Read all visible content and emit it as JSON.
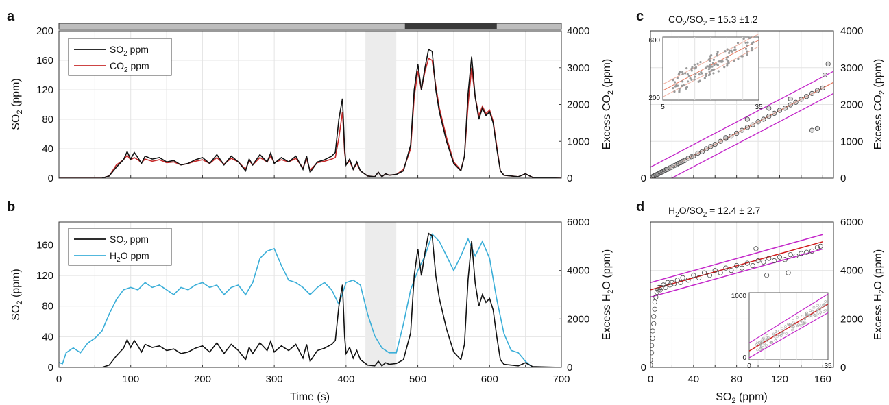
{
  "colors": {
    "so2": "#111111",
    "co2": "#c62a2a",
    "h2o": "#3aaed8",
    "fit": "#e8785e",
    "fit_h2o": "#d11a1a",
    "bounds": "#c326c9",
    "shade": "#ececec",
    "bar_light": "#bdbdbd",
    "bar_dark": "#3a3a3a",
    "grid": "#e4e4e4"
  },
  "chart_data": [
    {
      "panel": "a",
      "type": "line",
      "xlim": [
        0,
        700
      ],
      "ylim": [
        0,
        200
      ],
      "y2lim": [
        0,
        4000
      ],
      "yticks": [
        "0",
        "40",
        "80",
        "120",
        "160",
        "200"
      ],
      "y2ticks": [
        "0",
        "1000",
        "2000",
        "3000",
        "4000"
      ],
      "ylabel": "SO2 (ppm)",
      "y2label": "Excess CO2 (ppm)",
      "legend_position": "top-left",
      "shaded_interval": [
        427,
        470
      ],
      "top_bar": {
        "dark_interval": [
          482,
          610
        ]
      },
      "series": [
        {
          "name": "SO2 ppm",
          "axis": "left",
          "x": [
            0,
            60,
            70,
            80,
            90,
            95,
            100,
            105,
            110,
            115,
            120,
            130,
            140,
            150,
            160,
            170,
            180,
            190,
            200,
            210,
            220,
            230,
            240,
            250,
            260,
            265,
            270,
            280,
            290,
            295,
            300,
            310,
            320,
            330,
            340,
            345,
            350,
            360,
            370,
            380,
            385,
            390,
            395,
            398,
            400,
            405,
            410,
            415,
            420,
            430,
            440,
            445,
            450,
            455,
            460,
            470,
            480,
            490,
            495,
            500,
            505,
            510,
            515,
            520,
            525,
            530,
            540,
            550,
            560,
            565,
            570,
            575,
            580,
            585,
            590,
            595,
            600,
            605,
            610,
            615,
            620,
            630,
            640,
            650,
            660,
            700
          ],
          "y": [
            0,
            0,
            3,
            15,
            25,
            36,
            26,
            35,
            28,
            20,
            30,
            26,
            28,
            22,
            24,
            18,
            20,
            25,
            28,
            20,
            32,
            18,
            30,
            22,
            10,
            26,
            18,
            32,
            22,
            34,
            20,
            28,
            22,
            30,
            12,
            30,
            8,
            22,
            25,
            30,
            35,
            80,
            108,
            40,
            18,
            26,
            12,
            22,
            10,
            3,
            2,
            8,
            2,
            6,
            4,
            5,
            10,
            45,
            120,
            155,
            120,
            150,
            175,
            172,
            120,
            90,
            50,
            20,
            10,
            30,
            115,
            165,
            110,
            80,
            95,
            85,
            90,
            75,
            40,
            10,
            4,
            3,
            2,
            6,
            1,
            0
          ]
        },
        {
          "name": "CO2 ppm",
          "axis": "right",
          "x": [
            0,
            60,
            70,
            80,
            90,
            95,
            100,
            105,
            110,
            115,
            120,
            130,
            140,
            150,
            160,
            170,
            180,
            190,
            200,
            210,
            220,
            230,
            240,
            250,
            260,
            265,
            270,
            280,
            290,
            295,
            300,
            310,
            320,
            330,
            340,
            345,
            350,
            360,
            370,
            380,
            385,
            390,
            395,
            398,
            400,
            405,
            410,
            415,
            420,
            430,
            440,
            445,
            450,
            455,
            460,
            470,
            480,
            490,
            495,
            500,
            505,
            510,
            515,
            520,
            525,
            530,
            540,
            550,
            560,
            565,
            570,
            575,
            580,
            585,
            590,
            595,
            600,
            605,
            610,
            615,
            620,
            630,
            640,
            650,
            660,
            700
          ],
          "y": [
            0,
            0,
            60,
            360,
            500,
            620,
            500,
            560,
            500,
            420,
            520,
            460,
            500,
            420,
            440,
            360,
            400,
            460,
            500,
            400,
            560,
            380,
            540,
            440,
            240,
            480,
            360,
            560,
            440,
            600,
            420,
            500,
            440,
            540,
            280,
            520,
            220,
            420,
            460,
            520,
            560,
            1100,
            1800,
            700,
            380,
            460,
            240,
            400,
            200,
            60,
            40,
            160,
            40,
            120,
            80,
            100,
            240,
            800,
            2200,
            2900,
            2400,
            2900,
            3250,
            3200,
            2500,
            1900,
            1100,
            440,
            220,
            600,
            2000,
            3000,
            2200,
            1700,
            1950,
            1750,
            1850,
            1550,
            860,
            200,
            80,
            60,
            40,
            120,
            20,
            0
          ]
        }
      ]
    },
    {
      "panel": "b",
      "type": "line",
      "xlim": [
        0,
        700
      ],
      "ylim": [
        0,
        190
      ],
      "y2lim": [
        0,
        6000
      ],
      "xticks": [
        "0",
        "100",
        "200",
        "300",
        "400",
        "500",
        "600",
        "700"
      ],
      "yticks": [
        "0",
        "40",
        "80",
        "120",
        "160"
      ],
      "y2ticks": [
        "0",
        "2000",
        "4000",
        "6000"
      ],
      "xlabel": "Time (s)",
      "ylabel": "SO2 (ppm)",
      "y2label": "Excess H2O (ppm)",
      "legend_position": "top-left",
      "shaded_interval": [
        427,
        470
      ],
      "series": [
        {
          "name": "SO2 ppm",
          "axis": "left",
          "x": [
            0,
            60,
            70,
            80,
            90,
            95,
            100,
            105,
            110,
            115,
            120,
            130,
            140,
            150,
            160,
            170,
            180,
            190,
            200,
            210,
            220,
            230,
            240,
            250,
            260,
            265,
            270,
            280,
            290,
            295,
            300,
            310,
            320,
            330,
            340,
            345,
            350,
            360,
            370,
            380,
            385,
            390,
            395,
            398,
            400,
            405,
            410,
            415,
            420,
            430,
            440,
            445,
            450,
            455,
            460,
            470,
            480,
            490,
            495,
            500,
            505,
            510,
            515,
            520,
            525,
            530,
            540,
            550,
            560,
            565,
            570,
            575,
            580,
            585,
            590,
            595,
            600,
            605,
            610,
            615,
            620,
            630,
            640,
            650,
            660,
            700
          ],
          "y": [
            0,
            0,
            3,
            15,
            25,
            36,
            26,
            35,
            28,
            20,
            30,
            26,
            28,
            22,
            24,
            18,
            20,
            25,
            28,
            20,
            32,
            18,
            30,
            22,
            10,
            26,
            18,
            32,
            22,
            34,
            20,
            28,
            22,
            30,
            12,
            30,
            8,
            22,
            25,
            30,
            35,
            80,
            108,
            40,
            18,
            26,
            12,
            22,
            10,
            3,
            2,
            8,
            2,
            6,
            4,
            5,
            10,
            45,
            120,
            155,
            120,
            150,
            175,
            172,
            120,
            90,
            50,
            20,
            10,
            30,
            115,
            165,
            110,
            80,
            95,
            85,
            90,
            75,
            40,
            10,
            4,
            3,
            2,
            6,
            1,
            0
          ]
        },
        {
          "name": "H2O ppm",
          "axis": "right",
          "x": [
            0,
            5,
            10,
            20,
            30,
            40,
            50,
            60,
            70,
            80,
            90,
            100,
            110,
            120,
            130,
            140,
            150,
            160,
            170,
            180,
            190,
            200,
            210,
            220,
            230,
            240,
            250,
            260,
            270,
            280,
            290,
            300,
            310,
            320,
            330,
            340,
            350,
            360,
            370,
            380,
            390,
            400,
            410,
            420,
            430,
            440,
            450,
            460,
            470,
            480,
            490,
            500,
            510,
            520,
            530,
            540,
            550,
            560,
            570,
            580,
            590,
            600,
            610,
            620,
            630,
            640,
            650,
            660,
            700
          ],
          "y": [
            200,
            150,
            600,
            800,
            600,
            1000,
            1200,
            1500,
            2200,
            2800,
            3200,
            3300,
            3200,
            3500,
            3300,
            3400,
            3200,
            3000,
            3300,
            3200,
            3400,
            3500,
            3300,
            3400,
            3000,
            3300,
            3400,
            3000,
            3500,
            4500,
            4800,
            4900,
            4200,
            3600,
            3500,
            3300,
            3000,
            3300,
            3500,
            3200,
            2600,
            3500,
            3600,
            3400,
            2200,
            1300,
            800,
            600,
            600,
            1800,
            3200,
            4000,
            4600,
            5500,
            5200,
            4600,
            4000,
            4600,
            5300,
            4600,
            5200,
            4500,
            2800,
            1400,
            700,
            600,
            250,
            0,
            0
          ]
        }
      ]
    },
    {
      "panel": "c",
      "type": "scatter",
      "ratio_label": "CO2/SO2 = 15.3 ±1.2",
      "xlim": [
        0,
        170
      ],
      "y2lim": [
        0,
        4000
      ],
      "y2ticks": [
        "0",
        "1000",
        "2000",
        "3000",
        "4000"
      ],
      "y2label": "Excess CO2 (ppm)",
      "fit": {
        "slope": 15.3,
        "slope_low": 14.1,
        "slope_high": 16.5,
        "intercept": 0
      },
      "points_x": [
        1,
        2,
        3,
        4,
        5,
        6,
        7,
        8,
        9,
        10,
        11,
        12,
        13,
        14,
        15,
        16,
        18,
        20,
        22,
        24,
        26,
        28,
        30,
        32,
        35,
        38,
        40,
        44,
        48,
        52,
        56,
        60,
        65,
        70,
        75,
        80,
        85,
        90,
        95,
        100,
        105,
        110,
        115,
        120,
        125,
        130,
        135,
        140,
        145,
        150,
        155,
        160,
        162,
        165,
        110,
        130,
        150,
        155,
        70,
        90
      ],
      "points_y": [
        20,
        40,
        60,
        70,
        90,
        100,
        110,
        130,
        150,
        160,
        170,
        190,
        200,
        220,
        250,
        240,
        280,
        300,
        340,
        360,
        400,
        420,
        460,
        480,
        540,
        580,
        600,
        680,
        720,
        800,
        860,
        920,
        1000,
        1080,
        1140,
        1220,
        1300,
        1380,
        1450,
        1530,
        1600,
        1680,
        1760,
        1840,
        1900,
        1990,
        2060,
        2140,
        2220,
        2300,
        2380,
        2450,
        2800,
        3100,
        1900,
        2150,
        1300,
        1350,
        1100,
        1600
      ],
      "inset": {
        "xticks": [
          "5",
          "35"
        ],
        "yticks": [
          "200",
          "600"
        ],
        "xlim": [
          5,
          35
        ],
        "ylim": [
          200,
          600
        ]
      }
    },
    {
      "panel": "d",
      "type": "scatter",
      "ratio_label": "H2O/SO2 = 12.4 ± 2.7",
      "xlim": [
        0,
        170
      ],
      "y2lim": [
        0,
        6000
      ],
      "xticks": [
        "0",
        "40",
        "80",
        "120",
        "160"
      ],
      "y2ticks": [
        "0",
        "2000",
        "4000",
        "6000"
      ],
      "xlabel": "SO2 (ppm)",
      "y2label": "Excess H2O (ppm)",
      "fit": {
        "slope": 12.4,
        "intercept": 3200,
        "band": 300
      },
      "points_x": [
        0,
        0,
        1,
        1,
        2,
        2,
        3,
        3,
        4,
        4,
        5,
        6,
        7,
        8,
        9,
        10,
        12,
        14,
        16,
        18,
        20,
        22,
        25,
        28,
        30,
        35,
        40,
        45,
        50,
        55,
        60,
        65,
        70,
        75,
        80,
        85,
        90,
        95,
        100,
        105,
        110,
        115,
        120,
        125,
        130,
        135,
        140,
        145,
        150,
        155,
        158,
        98,
        108,
        128
      ],
      "points_y": [
        100,
        300,
        600,
        900,
        1200,
        1500,
        1800,
        2100,
        2400,
        2700,
        2900,
        3100,
        3200,
        3300,
        3200,
        3300,
        3400,
        3300,
        3500,
        3400,
        3500,
        3450,
        3600,
        3500,
        3700,
        3600,
        3800,
        3700,
        3900,
        3800,
        4000,
        3900,
        4100,
        4000,
        4200,
        4100,
        4300,
        4200,
        4400,
        4350,
        4500,
        4400,
        4550,
        4450,
        4650,
        4600,
        4700,
        4750,
        4800,
        4950,
        5000,
        4900,
        3800,
        3900
      ],
      "inset": {
        "xticks": [
          "0",
          "35"
        ],
        "yticks": [
          "0",
          "1000"
        ],
        "xlim": [
          0,
          35
        ],
        "ylim": [
          0,
          1000
        ]
      }
    }
  ],
  "labels": {
    "panel_a": "a",
    "panel_b": "b",
    "panel_c": "c",
    "panel_d": "d",
    "legend_a_so2": "SO",
    "legend_a_so2_sub": "2",
    "legend_a_so2_suffix": " ppm",
    "legend_a_co2": "CO",
    "legend_a_co2_sub": "2",
    "legend_a_co2_suffix": " ppm",
    "legend_b_so2": "SO",
    "legend_b_so2_sub": "2",
    "legend_b_so2_suffix": " ppm",
    "legend_b_h2o": "H",
    "legend_b_h2o_sub": "2",
    "legend_b_h2o_suffix": "O ppm",
    "ylabel_so2": "SO",
    "ylabel_so2_sub": "2",
    "ylabel_so2_suffix": " (ppm)",
    "y2label_co2": "Excess CO",
    "y2label_co2_sub": "2",
    "y2label_co2_suffix": " (ppm)",
    "y2label_h2o": "Excess H",
    "y2label_h2o_sub": "2",
    "y2label_h2o_suffix": "O (ppm)",
    "xlabel_time": "Time (s)",
    "xlabel_so2": "SO",
    "xlabel_so2_sub": "2",
    "xlabel_so2_suffix": " (ppm)",
    "ratio_c_a": "CO",
    "ratio_c_b": "2",
    "ratio_c_c": "/SO",
    "ratio_c_d": "2",
    "ratio_c_e": " = 15.3 ±1.2",
    "ratio_d_a": "H",
    "ratio_d_b": "2",
    "ratio_d_c": "O/SO",
    "ratio_d_d": "2",
    "ratio_d_e": " = 12.4 ± 2.7"
  }
}
